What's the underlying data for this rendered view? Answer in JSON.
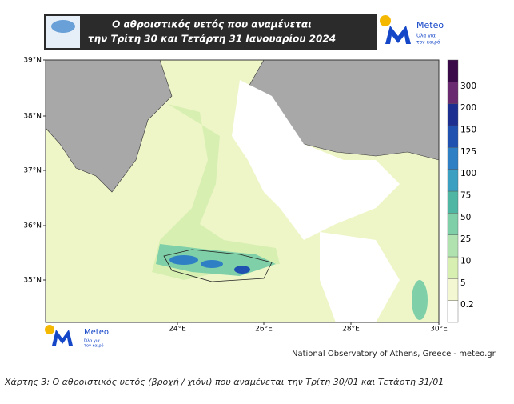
{
  "header": {
    "title_lines": [
      "Ο αθροιστικός υετός που αναμένεται",
      "την Τρίτη 30 και Τετάρτη 31 Ιανουαρίου 2024"
    ]
  },
  "logo": {
    "name": "Meteo",
    "slogan_lines": [
      "Όλα για",
      "τον καιρό"
    ]
  },
  "map": {
    "lat_labels": [
      "39°N",
      "38°N",
      "37°N",
      "36°N",
      "35°N"
    ],
    "lon_labels": [
      "24°E",
      "26°E",
      "28°E",
      "30°E"
    ]
  },
  "colorbar": {
    "levels": [
      0.2,
      5,
      10,
      25,
      50,
      75,
      100,
      125,
      150,
      200,
      300
    ],
    "colors": [
      "#ffffff",
      "#f4f8d2",
      "#d8efb2",
      "#b0e2b0",
      "#7fcfa8",
      "#4fb6a4",
      "#3a9fc0",
      "#2e7fc4",
      "#2050b0",
      "#1c2e90",
      "#6a2a70",
      "#3a0a48"
    ]
  },
  "credit": "National Observatory of Athens, Greece - meteo.gr",
  "caption": "Χάρτης 3: Ο αθροιστικός υετός (βροχή / χιόνι) που αναμένεται την Τρίτη 30/01 και Τετάρτη 31/01"
}
